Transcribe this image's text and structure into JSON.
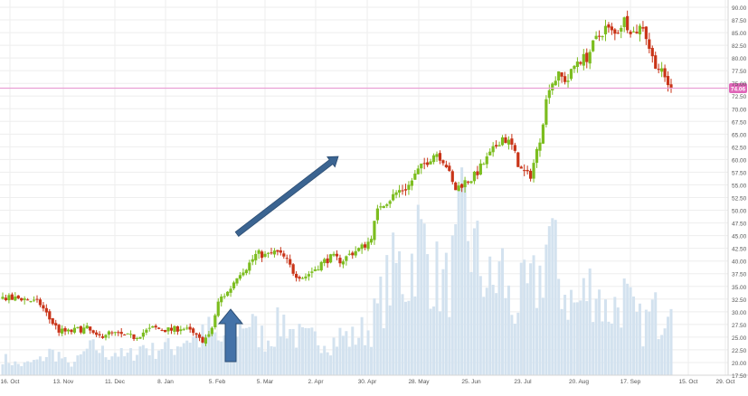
{
  "chart_data": {
    "type": "candlestick",
    "y_axis": {
      "position": "right",
      "ylim": [
        17.5,
        90.0
      ],
      "step": 2.5,
      "ticks": [
        "90.00",
        "87.50",
        "85.00",
        "82.50",
        "80.00",
        "77.50",
        "75.00",
        "72.50",
        "70.00",
        "67.50",
        "65.00",
        "62.50",
        "60.00",
        "57.50",
        "55.00",
        "52.50",
        "50.00",
        "47.50",
        "45.00",
        "42.50",
        "40.00",
        "37.50",
        "35.00",
        "32.50",
        "30.00",
        "27.50",
        "25.00",
        "22.50",
        "20.00",
        "17.50"
      ]
    },
    "x_axis": {
      "labels": [
        "16. Oct",
        "13. Nov",
        "11. Dec",
        "8. Jan",
        "5. Feb",
        "5. Mar",
        "2. Apr",
        "30. Apr",
        "28. May",
        "25. Jun",
        "23. Jul",
        "20. Aug",
        "17. Sep",
        "15. Oct",
        "29. Oct"
      ]
    },
    "grid": true,
    "current_price": {
      "value": 74.06,
      "label": "74.06",
      "color": "#e066b8"
    },
    "colors": {
      "up": "#7cbd1f",
      "down": "#c93418",
      "volume": "#d3e2ef",
      "arrow": "#3b6491"
    },
    "price_path": [
      [
        0,
        32.8
      ],
      [
        1,
        32.5
      ],
      [
        2,
        32.7
      ],
      [
        3,
        32.2
      ],
      [
        4,
        31.5
      ],
      [
        5,
        28.5
      ],
      [
        6,
        26.2
      ],
      [
        7,
        26.0
      ],
      [
        8,
        26.5
      ],
      [
        9,
        26.7
      ],
      [
        10,
        24.8
      ],
      [
        11,
        25.8
      ],
      [
        12,
        25.6
      ],
      [
        13,
        25.2
      ],
      [
        14,
        25.0
      ],
      [
        15,
        26.0
      ],
      [
        16,
        26.8
      ],
      [
        17,
        26.5
      ],
      [
        18,
        26.4
      ],
      [
        19,
        26.9
      ],
      [
        20,
        26.0
      ],
      [
        21,
        24.3
      ],
      [
        22,
        25.2
      ],
      [
        23,
        32.5
      ],
      [
        24,
        34.0
      ],
      [
        25,
        37.5
      ],
      [
        26,
        39.0
      ],
      [
        27,
        41.5
      ],
      [
        28,
        41.0
      ],
      [
        29,
        41.8
      ],
      [
        30,
        40.5
      ],
      [
        31,
        37.5
      ],
      [
        32,
        36.8
      ],
      [
        33,
        38.2
      ],
      [
        34,
        39.8
      ],
      [
        35,
        40.8
      ],
      [
        36,
        40.0
      ],
      [
        37,
        41.5
      ],
      [
        38,
        42.5
      ],
      [
        39,
        44.0
      ],
      [
        40,
        51.0
      ],
      [
        41,
        52.0
      ],
      [
        42,
        53.8
      ],
      [
        43,
        54.5
      ],
      [
        44,
        57.5
      ],
      [
        45,
        59.5
      ],
      [
        46,
        61.5
      ],
      [
        47,
        59.5
      ],
      [
        48,
        54.0
      ],
      [
        49,
        55.5
      ],
      [
        50,
        56.5
      ],
      [
        51,
        59.0
      ],
      [
        52,
        61.5
      ],
      [
        53,
        64.5
      ],
      [
        54,
        63.0
      ],
      [
        55,
        58.0
      ],
      [
        56,
        56.5
      ],
      [
        57,
        63.5
      ],
      [
        58,
        74.5
      ],
      [
        59,
        76.5
      ],
      [
        60,
        75.5
      ],
      [
        61,
        79.5
      ],
      [
        62,
        80.0
      ],
      [
        63,
        83.5
      ],
      [
        64,
        86.0
      ],
      [
        65,
        84.5
      ],
      [
        66,
        87.5
      ],
      [
        67,
        85.0
      ],
      [
        68,
        86.5
      ],
      [
        69,
        80.0
      ],
      [
        70,
        77.0
      ],
      [
        71,
        74.06
      ]
    ],
    "volume_path": [
      [
        0,
        21
      ],
      [
        1,
        20
      ],
      [
        2,
        19.5
      ],
      [
        3,
        20
      ],
      [
        4,
        20.5
      ],
      [
        5,
        22
      ],
      [
        6,
        21.5
      ],
      [
        7,
        19.5
      ],
      [
        8,
        20.5
      ],
      [
        9,
        22.5
      ],
      [
        10,
        23
      ],
      [
        11,
        21.5
      ],
      [
        12,
        22.2
      ],
      [
        13,
        21
      ],
      [
        14,
        22
      ],
      [
        15,
        23.5
      ],
      [
        16,
        22.2
      ],
      [
        17,
        23.5
      ],
      [
        18,
        22.5
      ],
      [
        19,
        24.5
      ],
      [
        20,
        25
      ],
      [
        21,
        24.5
      ],
      [
        22,
        26.5
      ],
      [
        23,
        24
      ],
      [
        24,
        24.5
      ],
      [
        25,
        27.5
      ],
      [
        26,
        28.5
      ],
      [
        27,
        26
      ],
      [
        28,
        24.5
      ],
      [
        29,
        26.5
      ],
      [
        30,
        28.5
      ],
      [
        31,
        25.5
      ],
      [
        32,
        24.5
      ],
      [
        33,
        24.5
      ],
      [
        34,
        25
      ],
      [
        35,
        24
      ],
      [
        36,
        25.5
      ],
      [
        37,
        24.5
      ],
      [
        38,
        26
      ],
      [
        39,
        26.5
      ],
      [
        40,
        31
      ],
      [
        41,
        36
      ],
      [
        42,
        39
      ],
      [
        43,
        36
      ],
      [
        44,
        45
      ],
      [
        45,
        42
      ],
      [
        46,
        37
      ],
      [
        47,
        35
      ],
      [
        48,
        39
      ],
      [
        49,
        49
      ],
      [
        50,
        42
      ],
      [
        51,
        38
      ],
      [
        52,
        34
      ],
      [
        53,
        39
      ],
      [
        54,
        30
      ],
      [
        55,
        33
      ],
      [
        56,
        34
      ],
      [
        57,
        36
      ],
      [
        58,
        46
      ],
      [
        59,
        37
      ],
      [
        60,
        33
      ],
      [
        61,
        31
      ],
      [
        62,
        34
      ],
      [
        63,
        36
      ],
      [
        64,
        30
      ],
      [
        65,
        31
      ],
      [
        66,
        33
      ],
      [
        67,
        29
      ],
      [
        68,
        27
      ],
      [
        69,
        30
      ],
      [
        70,
        29
      ],
      [
        71,
        38
      ]
    ]
  }
}
